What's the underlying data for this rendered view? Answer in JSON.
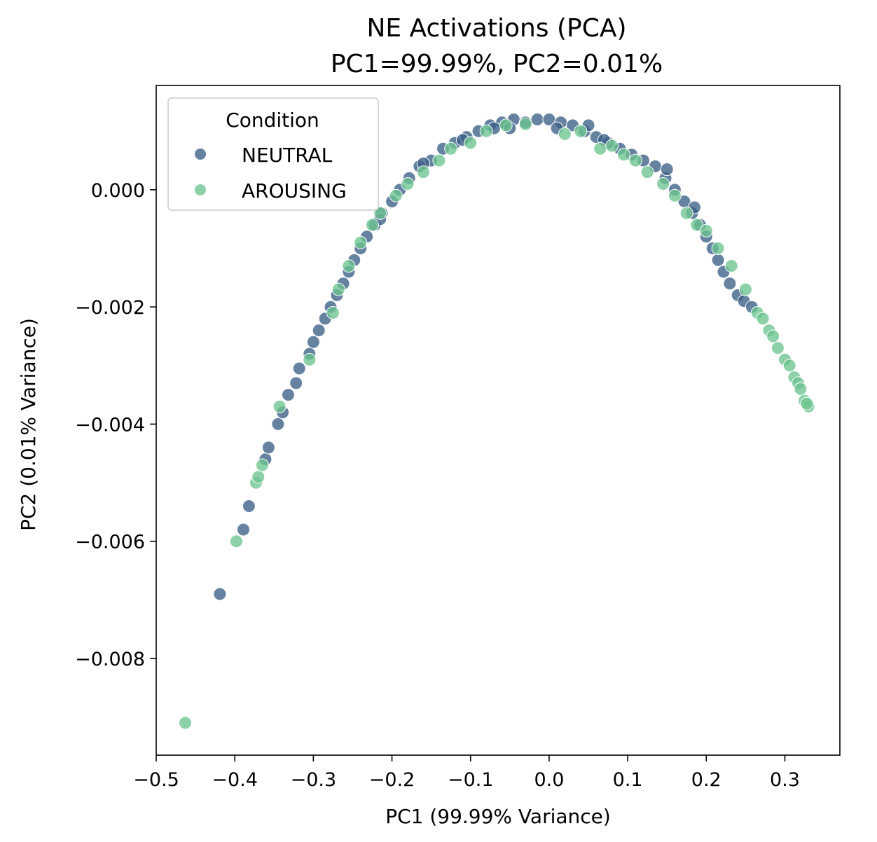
{
  "chart_data": {
    "type": "scatter",
    "title": "NE Activations (PCA)",
    "subtitle": "PC1=99.99%, PC2=0.01%",
    "xlabel": "PC1 (99.99% Variance)",
    "ylabel": "PC2 (0.01% Variance)",
    "xlim": [
      -0.5,
      0.37
    ],
    "ylim": [
      -0.00965,
      0.00178
    ],
    "xticks": [
      -0.5,
      -0.4,
      -0.3,
      -0.2,
      -0.1,
      0.0,
      0.1,
      0.2,
      0.3
    ],
    "xtick_labels": [
      "−0.5",
      "−0.4",
      "−0.3",
      "−0.2",
      "−0.1",
      "0.0",
      "0.1",
      "0.2",
      "0.3"
    ],
    "yticks": [
      0.0,
      -0.002,
      -0.004,
      -0.006,
      -0.008
    ],
    "ytick_labels": [
      "0.000",
      "−0.002",
      "−0.004",
      "−0.006",
      "−0.008"
    ],
    "grid": false,
    "legend": {
      "title": "Condition",
      "placement": "top-left"
    },
    "series": [
      {
        "name": "NEUTRAL",
        "color": "#3b5f86",
        "points": [
          [
            -0.419,
            -0.0069
          ],
          [
            -0.389,
            -0.0058
          ],
          [
            -0.382,
            -0.0054
          ],
          [
            -0.361,
            -0.0046
          ],
          [
            -0.357,
            -0.0044
          ],
          [
            -0.345,
            -0.004
          ],
          [
            -0.339,
            -0.0038
          ],
          [
            -0.332,
            -0.0035
          ],
          [
            -0.322,
            -0.0033
          ],
          [
            -0.318,
            -0.00305
          ],
          [
            -0.305,
            -0.0028
          ],
          [
            -0.3,
            -0.0026
          ],
          [
            -0.293,
            -0.0024
          ],
          [
            -0.285,
            -0.0022
          ],
          [
            -0.278,
            -0.002
          ],
          [
            -0.27,
            -0.0018
          ],
          [
            -0.262,
            -0.0016
          ],
          [
            -0.255,
            -0.0014
          ],
          [
            -0.248,
            -0.0012
          ],
          [
            -0.24,
            -0.001
          ],
          [
            -0.232,
            -0.0008
          ],
          [
            -0.222,
            -0.0006
          ],
          [
            -0.213,
            -0.0004
          ],
          [
            -0.2,
            -0.0002
          ],
          [
            -0.19,
            0.0
          ],
          [
            -0.178,
            0.0002
          ],
          [
            -0.165,
            0.0004
          ],
          [
            -0.15,
            0.0005
          ],
          [
            -0.135,
            0.0007
          ],
          [
            -0.12,
            0.0008
          ],
          [
            -0.105,
            0.0009
          ],
          [
            -0.09,
            0.001
          ],
          [
            -0.075,
            0.0011
          ],
          [
            -0.06,
            0.00115
          ],
          [
            -0.045,
            0.0012
          ],
          [
            -0.03,
            0.00115
          ],
          [
            -0.015,
            0.0012
          ],
          [
            0.0,
            0.0012
          ],
          [
            0.015,
            0.00115
          ],
          [
            0.03,
            0.0011
          ],
          [
            0.045,
            0.001
          ],
          [
            0.06,
            0.0009
          ],
          [
            0.075,
            0.0008
          ],
          [
            0.09,
            0.0007
          ],
          [
            0.105,
            0.0006
          ],
          [
            0.12,
            0.0005
          ],
          [
            0.135,
            0.0004
          ],
          [
            0.148,
            0.0002
          ],
          [
            0.16,
            0.0
          ],
          [
            0.172,
            -0.0002
          ],
          [
            0.182,
            -0.0004
          ],
          [
            0.192,
            -0.0006
          ],
          [
            0.2,
            -0.0008
          ],
          [
            0.208,
            -0.001
          ],
          [
            0.215,
            -0.0012
          ],
          [
            0.222,
            -0.0014
          ],
          [
            0.23,
            -0.0016
          ],
          [
            0.24,
            -0.0018
          ],
          [
            0.248,
            -0.0019
          ],
          [
            0.258,
            -0.002
          ],
          [
            -0.11,
            0.00085
          ],
          [
            -0.07,
            0.00105
          ],
          [
            0.01,
            0.00105
          ],
          [
            0.07,
            0.00085
          ],
          [
            0.15,
            0.00035
          ],
          [
            -0.16,
            0.00045
          ],
          [
            0.185,
            -0.0003
          ],
          [
            -0.215,
            -0.0005
          ],
          [
            0.05,
            0.0011
          ],
          [
            -0.05,
            0.00105
          ]
        ]
      },
      {
        "name": "AROUSING",
        "color": "#6cc48e",
        "points": [
          [
            -0.463,
            -0.0091
          ],
          [
            -0.398,
            -0.006
          ],
          [
            -0.373,
            -0.005
          ],
          [
            -0.37,
            -0.0049
          ],
          [
            -0.365,
            -0.0047
          ],
          [
            -0.343,
            -0.0037
          ],
          [
            -0.305,
            -0.0029
          ],
          [
            -0.275,
            -0.0021
          ],
          [
            -0.268,
            -0.0017
          ],
          [
            -0.255,
            -0.0013
          ],
          [
            -0.24,
            -0.0009
          ],
          [
            -0.225,
            -0.0006
          ],
          [
            -0.215,
            -0.0004
          ],
          [
            -0.195,
            -0.0001
          ],
          [
            -0.18,
            0.0001
          ],
          [
            -0.16,
            0.0003
          ],
          [
            -0.14,
            0.0005
          ],
          [
            -0.125,
            0.0007
          ],
          [
            -0.1,
            0.0008
          ],
          [
            -0.08,
            0.001
          ],
          [
            -0.055,
            0.0011
          ],
          [
            -0.03,
            0.00112
          ],
          [
            0.02,
            0.00095
          ],
          [
            0.04,
            0.001
          ],
          [
            0.065,
            0.0007
          ],
          [
            0.08,
            0.00075
          ],
          [
            0.095,
            0.0006
          ],
          [
            0.11,
            0.0005
          ],
          [
            0.125,
            0.0003
          ],
          [
            0.145,
            0.0001
          ],
          [
            0.16,
            -0.0001
          ],
          [
            0.175,
            -0.0004
          ],
          [
            0.188,
            -0.0006
          ],
          [
            0.2,
            -0.0007
          ],
          [
            0.215,
            -0.001
          ],
          [
            0.232,
            -0.0013
          ],
          [
            0.25,
            -0.0017
          ],
          [
            0.265,
            -0.0021
          ],
          [
            0.272,
            -0.0022
          ],
          [
            0.28,
            -0.0024
          ],
          [
            0.285,
            -0.0025
          ],
          [
            0.291,
            -0.0027
          ],
          [
            0.3,
            -0.0029
          ],
          [
            0.306,
            -0.003
          ],
          [
            0.312,
            -0.0032
          ],
          [
            0.317,
            -0.0033
          ],
          [
            0.32,
            -0.0034
          ],
          [
            0.325,
            -0.0036
          ],
          [
            0.33,
            -0.0037
          ],
          [
            0.328,
            -0.00365
          ]
        ]
      }
    ]
  }
}
